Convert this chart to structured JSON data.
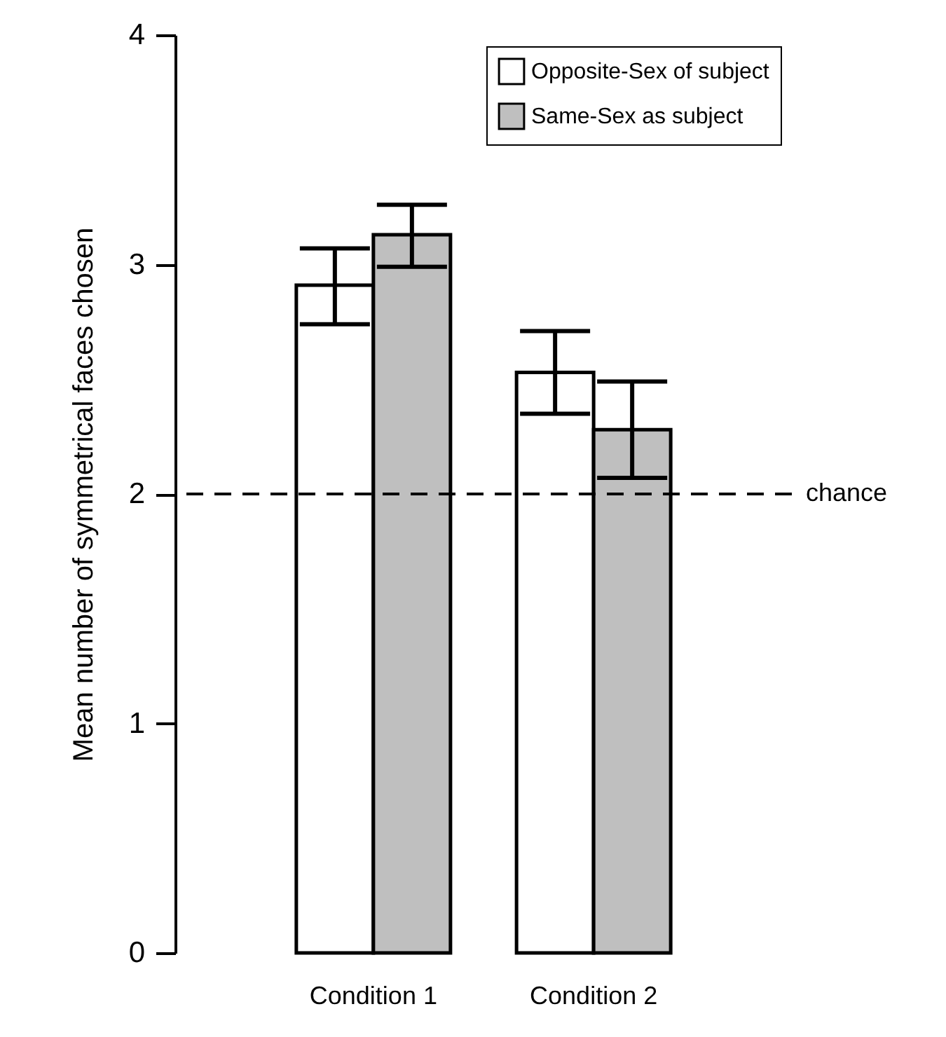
{
  "chart_data": {
    "type": "bar",
    "ylabel": "Mean number of symmetrical faces chosen",
    "categories": [
      "Condition 1",
      "Condition 2"
    ],
    "series": [
      {
        "name": "Opposite-Sex of subject",
        "color": "#ffffff",
        "values": [
          2.91,
          2.53
        ],
        "errors": [
          [
            2.74,
            3.07
          ],
          [
            2.35,
            2.71
          ]
        ]
      },
      {
        "name": "Same-Sex as subject",
        "color": "#bfbfbf",
        "values": [
          3.13,
          2.28
        ],
        "errors": [
          [
            2.99,
            3.26
          ],
          [
            2.07,
            2.49
          ]
        ]
      }
    ],
    "ylim": [
      0,
      4
    ],
    "yticks": [
      0,
      1,
      2,
      3,
      4
    ],
    "grid": false,
    "legend": "top right",
    "ref_lines": [
      {
        "axis": "y",
        "value": 2,
        "label": "chance",
        "line_style": "dashed"
      }
    ]
  }
}
